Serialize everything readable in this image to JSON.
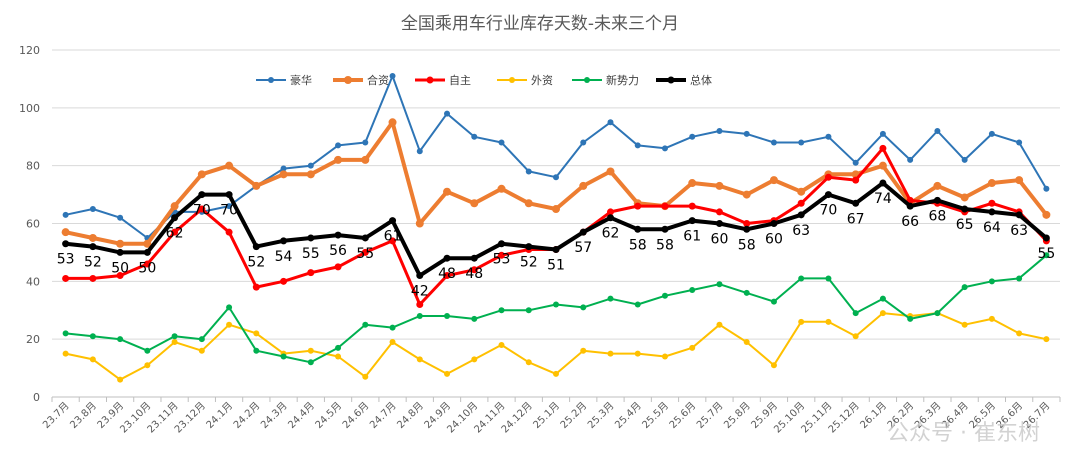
{
  "chart_data": {
    "type": "line",
    "title": "全国乘用车行业库存天数-未来三个月",
    "watermark": "公众号 · 崔东树",
    "ylim": [
      0,
      120
    ],
    "yticks": [
      0,
      20,
      40,
      60,
      80,
      100,
      120
    ],
    "grid": true,
    "legend_position": "top",
    "categories": [
      "23.7月",
      "23.8月",
      "23.9月",
      "23.10月",
      "23.11月",
      "23.12月",
      "24.1月",
      "24.2月",
      "24.3月",
      "24.4月",
      "24.5月",
      "24.6月",
      "24.7月",
      "24.8月",
      "24.9月",
      "24.10月",
      "24.11月",
      "24.12月",
      "25.1月",
      "25.2月",
      "25.3月",
      "25.4月",
      "25.5月",
      "25.6月",
      "25.7月",
      "25.8月",
      "25.9月",
      "25.10月",
      "25.11月",
      "25.12月",
      "26.1月",
      "26.2月",
      "26.3月",
      "26.4月",
      "26.5月",
      "26.6月",
      "26.7月"
    ],
    "series": [
      {
        "name": "豪华",
        "color": "#2e75b6",
        "width": 2,
        "marker": 5,
        "labels": false,
        "values": [
          63,
          65,
          62,
          55,
          64,
          64,
          66,
          73,
          79,
          80,
          87,
          88,
          111,
          85,
          98,
          90,
          88,
          78,
          76,
          88,
          95,
          87,
          86,
          90,
          92,
          91,
          88,
          88,
          90,
          81,
          91,
          82,
          92,
          82,
          91,
          88,
          72
        ]
      },
      {
        "name": "合资",
        "color": "#ed7d31",
        "width": 4,
        "marker": 7,
        "labels": false,
        "values": [
          57,
          55,
          53,
          53,
          66,
          77,
          80,
          73,
          77,
          77,
          82,
          82,
          95,
          60,
          71,
          67,
          72,
          67,
          65,
          73,
          78,
          67,
          66,
          74,
          73,
          70,
          75,
          71,
          77,
          77,
          80,
          67,
          73,
          69,
          74,
          75,
          63
        ]
      },
      {
        "name": "自主",
        "color": "#ff0000",
        "width": 3,
        "marker": 6,
        "labels": false,
        "values": [
          41,
          41,
          42,
          46,
          57,
          65,
          57,
          38,
          40,
          43,
          45,
          50,
          54,
          32,
          42,
          44,
          49,
          51,
          51,
          57,
          64,
          66,
          66,
          66,
          64,
          60,
          61,
          67,
          76,
          75,
          86,
          68,
          67,
          64,
          67,
          64,
          54
        ]
      },
      {
        "name": "外资",
        "color": "#ffc000",
        "width": 2,
        "marker": 5,
        "labels": false,
        "values": [
          15,
          13,
          6,
          11,
          19,
          16,
          25,
          22,
          15,
          16,
          14,
          7,
          19,
          13,
          8,
          13,
          18,
          12,
          8,
          16,
          15,
          15,
          14,
          17,
          25,
          19,
          11,
          26,
          26,
          21,
          29,
          28,
          29,
          25,
          27,
          22,
          20
        ]
      },
      {
        "name": "新势力",
        "color": "#00b050",
        "width": 2,
        "marker": 5,
        "labels": false,
        "values": [
          22,
          21,
          20,
          16,
          21,
          20,
          31,
          16,
          14,
          12,
          17,
          25,
          24,
          28,
          28,
          27,
          30,
          30,
          32,
          31,
          34,
          32,
          35,
          37,
          39,
          36,
          33,
          41,
          41,
          29,
          34,
          27,
          29,
          38,
          40,
          41,
          49
        ]
      },
      {
        "name": "总体",
        "color": "#000000",
        "width": 4,
        "marker": 6,
        "labels": true,
        "values": [
          53,
          52,
          50,
          50,
          62,
          70,
          70,
          52,
          54,
          55,
          56,
          55,
          61,
          42,
          48,
          48,
          53,
          52,
          51,
          57,
          62,
          58,
          58,
          61,
          60,
          58,
          60,
          63,
          70,
          67,
          74,
          66,
          68,
          65,
          64,
          63,
          55
        ]
      }
    ]
  }
}
